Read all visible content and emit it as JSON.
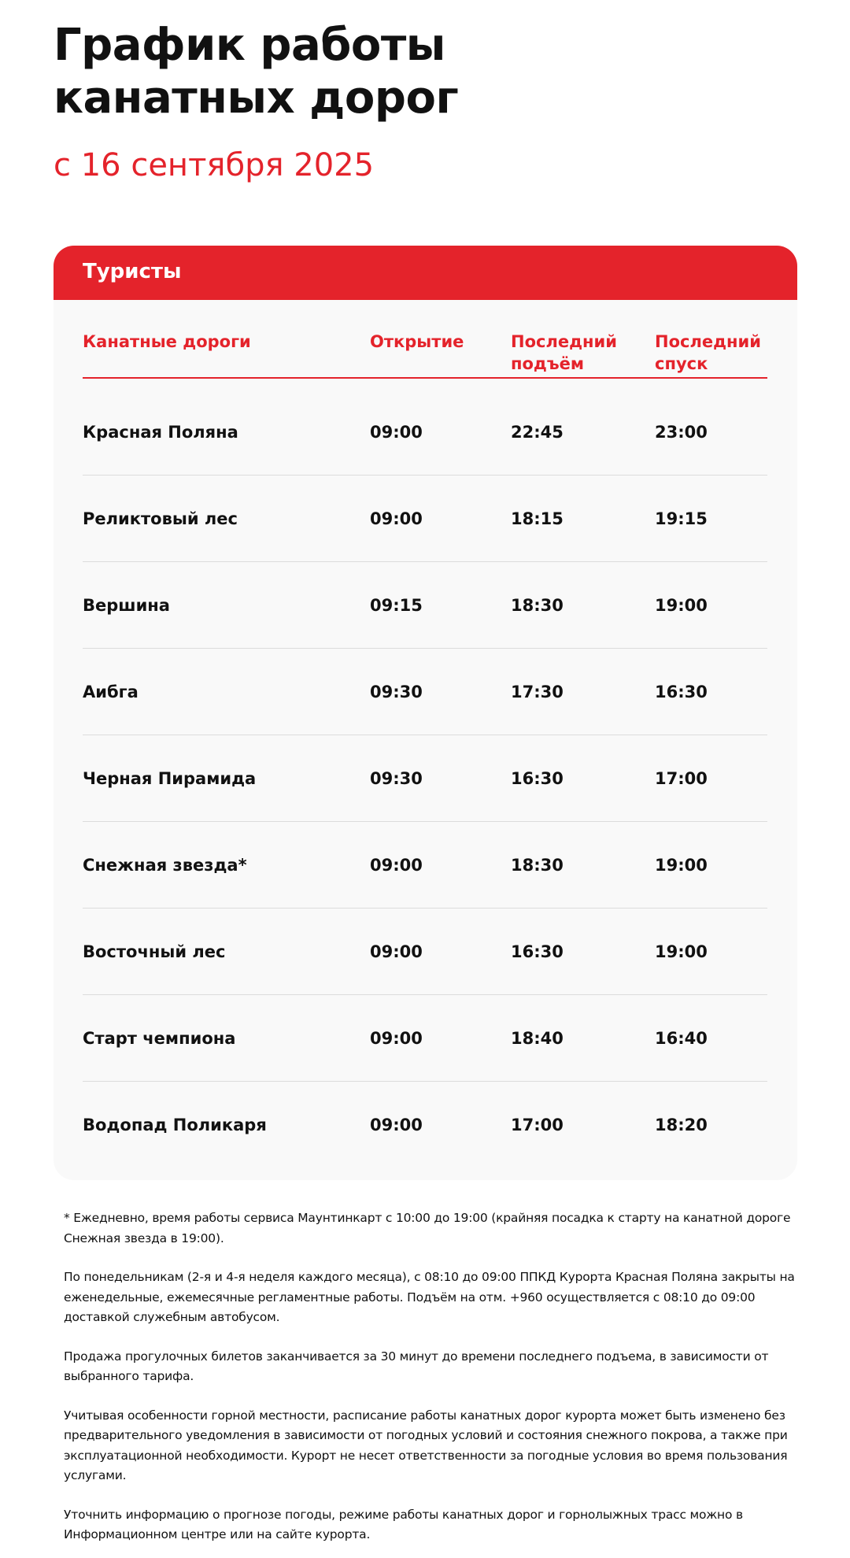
{
  "title_line1": "График работы",
  "title_line2": "канатных дорог",
  "subtitle": "с 16 сентября 2025",
  "accent_color": "#e4232b",
  "card": {
    "header": "Туристы",
    "columns": [
      "Канатные дороги",
      "Открытие",
      "Последний подъём",
      "Последний спуск"
    ],
    "rows": [
      [
        "Красная Поляна",
        "09:00",
        "22:45",
        "23:00"
      ],
      [
        "Реликтовый лес",
        "09:00",
        "18:15",
        "19:15"
      ],
      [
        "Вершина",
        "09:15",
        "18:30",
        "19:00"
      ],
      [
        "Аибга",
        "09:30",
        "17:30",
        "16:30"
      ],
      [
        "Черная Пирамида",
        "09:30",
        "16:30",
        "17:00"
      ],
      [
        "Снежная звезда*",
        "09:00",
        "18:30",
        "19:00"
      ],
      [
        "Восточный лес",
        "09:00",
        "16:30",
        "19:00"
      ],
      [
        "Старт чемпиона",
        "09:00",
        "18:40",
        "16:40"
      ],
      [
        "Водопад Поликаря",
        "09:00",
        "17:00",
        "18:20"
      ]
    ]
  },
  "notes": [
    "* Ежедневно, время работы сервиса Маунтинкарт с 10:00 до 19:00 (крайняя посадка к старту на канатной дороге Снежная звезда в 19:00).",
    "По понедельникам (2-я и 4-я неделя каждого месяца), с 08:10 до 09:00 ППКД Курорта Красная Поляна закрыты на еженедельные, ежемесячные регламентные работы. Подъём на отм. +960 осуществляется с 08:10 до 09:00 доставкой служебным автобусом.",
    "Продажа прогулочных билетов заканчивается за 30 минут до времени последнего подъема, в зависимости от выбранного тарифа.",
    "Учитывая особенности горной местности, расписание работы канатных дорог курорта может быть изменено без предварительного уведомления в зависимости от погодных условий и состояния снежного покрова, а также при эксплуатационной необходимости. Курорт не несет ответственности за погодные условия во время пользования услугами.",
    "Уточнить информацию о прогнозе погоды, режиме работы канатных дорог и горнолыжных трасс можно в Информационном центре или на сайте курорта."
  ]
}
